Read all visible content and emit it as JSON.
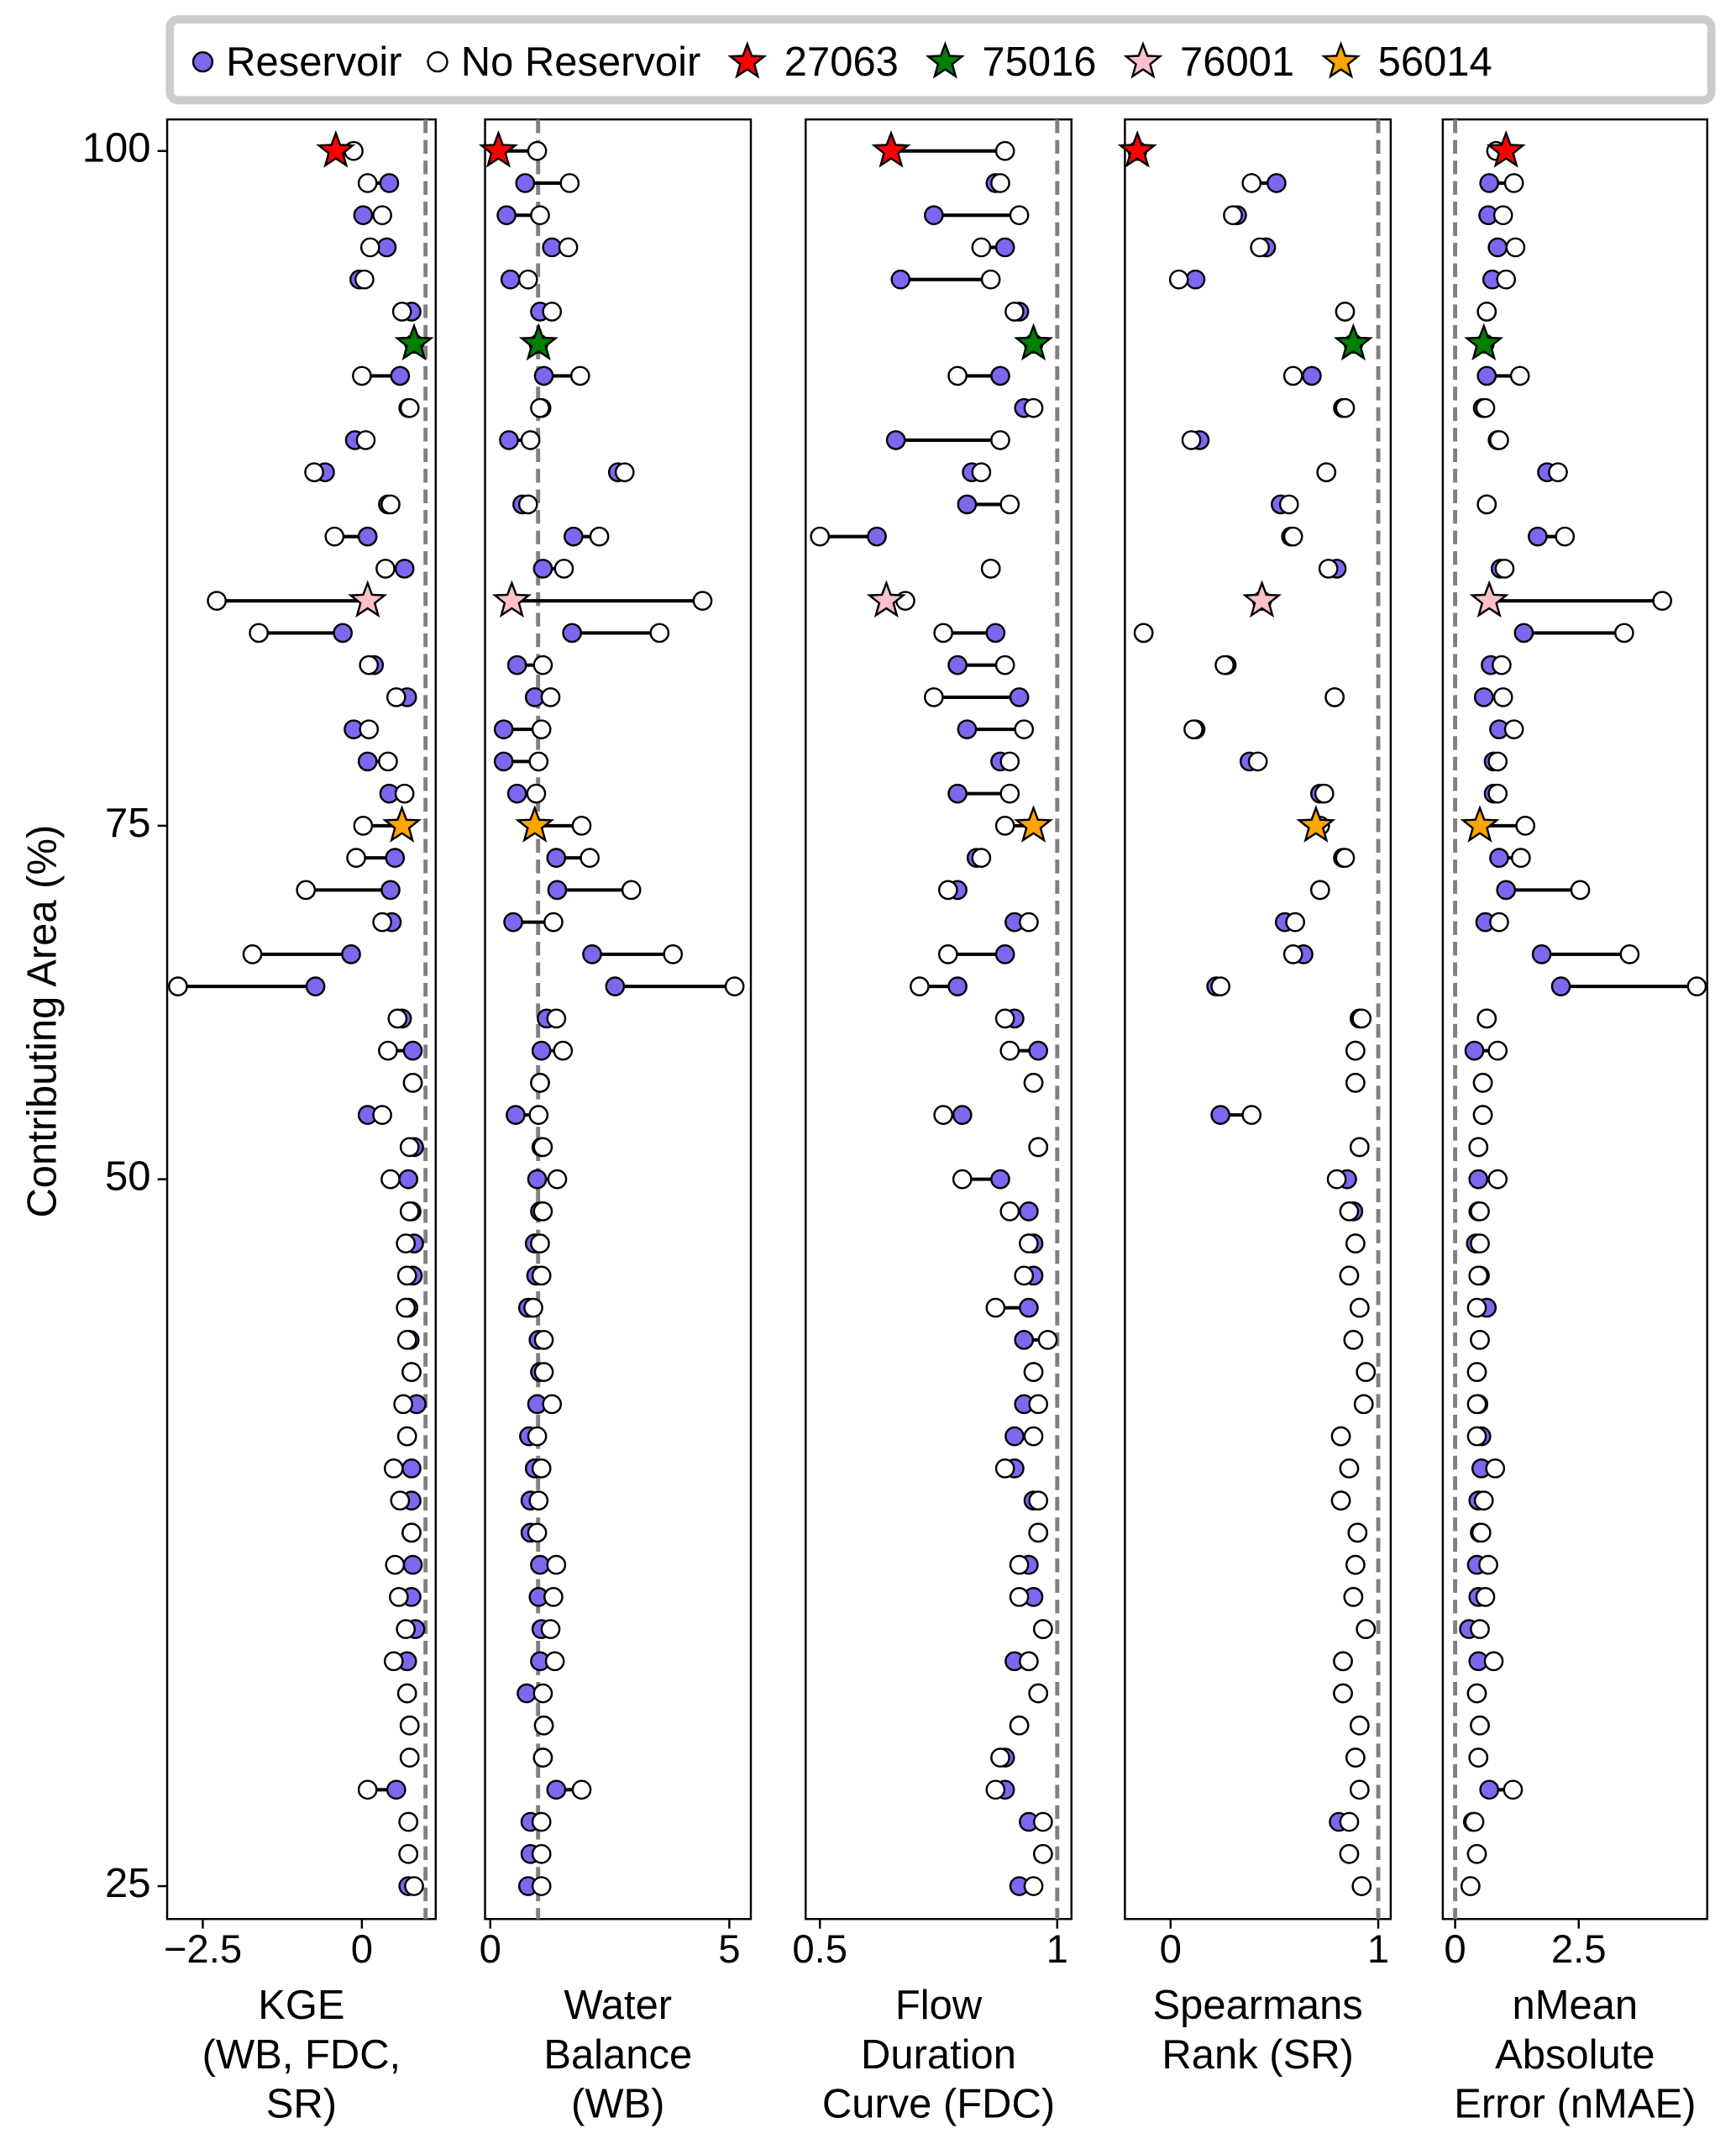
{
  "chart_data": {
    "type": "dumbbell",
    "ylabel": "Contributing Area (%)",
    "categories": [
      "100",
      null,
      null,
      null,
      null,
      null,
      null,
      null,
      null,
      null,
      null,
      null,
      null,
      null,
      null,
      null,
      null,
      null,
      null,
      null,
      null,
      "75",
      null,
      null,
      null,
      null,
      null,
      null,
      null,
      null,
      null,
      null,
      "50",
      null,
      null,
      null,
      null,
      null,
      null,
      null,
      null,
      null,
      null,
      null,
      null,
      null,
      null,
      null,
      null,
      null,
      null,
      null,
      null,
      null,
      "25"
    ],
    "series": [
      {
        "name": "Reservoir",
        "color": "#7b68ee"
      },
      {
        "name": "No Reservoir",
        "color": "#ffffff"
      }
    ],
    "highlights": [
      {
        "name": "27063",
        "color": "#ff0000",
        "row": 0
      },
      {
        "name": "75016",
        "color": "#008000",
        "row": 6
      },
      {
        "name": "76001",
        "color": "#ffc0cb",
        "row": 14
      },
      {
        "name": "56014",
        "color": "#ffa500",
        "row": 21
      }
    ],
    "panels": [
      {
        "xlabel": [
          "KGE",
          "(WB, FDC,",
          "SR)"
        ],
        "xlim": [
          -3.06,
          1.16
        ],
        "xticks": [
          {
            "value": -2.5,
            "label": "−2.5"
          },
          0
        ],
        "reference": 1,
        "series": [
          {
            "values": [
              -0.41,
              0.43,
              0.02,
              0.39,
              -0.04,
              0.78,
              0.82,
              0.6,
              0.73,
              -0.11,
              -0.58,
              0.41,
              0.09,
              0.67,
              0.09,
              -0.3,
              0.19,
              0.71,
              -0.13,
              0.09,
              0.43,
              0.63,
              0.52,
              0.45,
              0.47,
              -0.17,
              -0.73,
              0.63,
              0.8,
              0.8,
              0.09,
              0.82,
              0.73,
              0.78,
              0.82,
              0.8,
              0.73,
              0.75,
              0.78,
              0.86,
              0.71,
              0.78,
              0.78,
              0.78,
              0.8,
              0.78,
              0.84,
              0.71,
              0.71,
              0.75,
              0.75,
              0.54,
              0.73,
              0.73,
              0.73
            ]
          },
          {
            "values": [
              -0.13,
              0.09,
              0.32,
              0.13,
              0.04,
              0.63,
              0.82,
              0.0,
              0.75,
              0.06,
              -0.75,
              0.45,
              -0.43,
              0.37,
              -2.28,
              -1.62,
              0.11,
              0.54,
              0.11,
              0.41,
              0.67,
              0.02,
              -0.09,
              -0.88,
              0.32,
              -1.72,
              -2.89,
              0.56,
              0.41,
              0.8,
              0.32,
              0.75,
              0.45,
              0.75,
              0.69,
              0.71,
              0.69,
              0.71,
              0.78,
              0.65,
              0.71,
              0.5,
              0.6,
              0.78,
              0.52,
              0.58,
              0.69,
              0.5,
              0.71,
              0.75,
              0.75,
              0.09,
              0.73,
              0.73,
              0.82
            ]
          }
        ]
      },
      {
        "xlabel": [
          "Water",
          "Balance",
          "(WB)"
        ],
        "xlim": [
          -0.11,
          5.45
        ],
        "xticks": [
          0,
          5
        ],
        "reference": 1,
        "series": [
          {
            "values": [
              0.17,
              0.73,
              0.34,
              1.29,
              0.42,
              1.04,
              1.01,
              1.12,
              1.07,
              0.39,
              2.67,
              0.67,
              1.74,
              1.1,
              0.45,
              1.71,
              0.56,
              0.93,
              0.28,
              0.28,
              0.56,
              0.93,
              1.38,
              1.4,
              0.48,
              2.13,
              2.61,
              1.18,
              1.07,
              1.04,
              0.53,
              1.07,
              0.98,
              1.04,
              0.93,
              0.96,
              0.79,
              1.01,
              1.04,
              0.98,
              0.81,
              0.93,
              0.84,
              0.84,
              1.04,
              1.01,
              1.07,
              1.04,
              0.76,
              1.12,
              1.1,
              1.38,
              0.84,
              0.84,
              0.79
            ]
          },
          {
            "values": [
              0.98,
              1.66,
              1.04,
              1.63,
              0.79,
              1.29,
              1.01,
              1.88,
              1.04,
              0.84,
              2.81,
              0.79,
              2.28,
              1.54,
              4.44,
              3.54,
              1.1,
              1.26,
              1.07,
              1.01,
              0.96,
              1.91,
              2.08,
              2.95,
              1.32,
              3.82,
              5.11,
              1.38,
              1.52,
              1.04,
              1.01,
              1.1,
              1.4,
              1.1,
              1.04,
              1.07,
              0.9,
              1.12,
              1.12,
              1.29,
              0.98,
              1.07,
              1.01,
              0.98,
              1.38,
              1.32,
              1.26,
              1.35,
              1.1,
              1.12,
              1.1,
              1.91,
              1.07,
              1.07,
              1.07
            ]
          }
        ]
      },
      {
        "xlabel": [
          "Flow",
          "Duration",
          "Curve (FDC)"
        ],
        "xlim": [
          0.47,
          1.03
        ],
        "xticks": [
          0.5,
          1
        ],
        "reference": 1,
        "series": [
          {
            "values": [
              0.65,
              0.87,
              0.74,
              0.89,
              0.67,
              0.92,
              0.95,
              0.88,
              0.93,
              0.66,
              0.82,
              0.81,
              0.62,
              0.86,
              0.64,
              0.87,
              0.79,
              0.92,
              0.81,
              0.88,
              0.79,
              0.95,
              0.83,
              0.79,
              0.91,
              0.89,
              0.79,
              0.91,
              0.96,
              0.95,
              0.8,
              0.96,
              0.88,
              0.94,
              0.95,
              0.95,
              0.94,
              0.93,
              0.95,
              0.93,
              0.91,
              0.91,
              0.95,
              0.96,
              0.94,
              0.95,
              0.97,
              0.91,
              0.96,
              0.92,
              0.89,
              0.89,
              0.94,
              0.97,
              0.92
            ]
          },
          {
            "values": [
              0.89,
              0.88,
              0.92,
              0.84,
              0.86,
              0.91,
              0.95,
              0.79,
              0.95,
              0.88,
              0.84,
              0.9,
              0.5,
              0.86,
              0.68,
              0.76,
              0.89,
              0.74,
              0.93,
              0.9,
              0.9,
              0.89,
              0.84,
              0.77,
              0.94,
              0.77,
              0.71,
              0.89,
              0.9,
              0.95,
              0.76,
              0.96,
              0.8,
              0.9,
              0.94,
              0.93,
              0.87,
              0.98,
              0.95,
              0.96,
              0.95,
              0.89,
              0.96,
              0.96,
              0.92,
              0.92,
              0.97,
              0.94,
              0.96,
              0.92,
              0.88,
              0.87,
              0.97,
              0.97,
              0.95
            ]
          }
        ]
      },
      {
        "xlabel": [
          "Spearmans",
          "Rank (SR)"
        ],
        "xlim": [
          -0.22,
          1.06
        ],
        "xticks": [
          0,
          1
        ],
        "reference": 1,
        "series": [
          {
            "values": [
              -0.16,
              0.51,
              0.32,
              0.46,
              0.12,
              0.84,
              0.88,
              0.68,
              0.83,
              0.14,
              0.75,
              0.53,
              0.58,
              0.8,
              0.44,
              -0.13,
              0.27,
              0.79,
              0.12,
              0.38,
              0.72,
              0.7,
              0.83,
              0.72,
              0.55,
              0.64,
              0.22,
              0.91,
              0.89,
              0.89,
              0.24,
              0.91,
              0.85,
              0.88,
              0.89,
              0.86,
              0.91,
              0.88,
              0.94,
              0.93,
              0.82,
              0.86,
              0.82,
              0.9,
              0.89,
              0.88,
              0.94,
              0.83,
              0.83,
              0.91,
              0.89,
              0.91,
              0.81,
              0.86,
              0.92
            ]
          },
          {
            "values": [
              -0.16,
              0.39,
              0.3,
              0.43,
              0.04,
              0.84,
              0.88,
              0.59,
              0.84,
              0.1,
              0.75,
              0.57,
              0.59,
              0.76,
              0.44,
              -0.13,
              0.26,
              0.79,
              0.11,
              0.42,
              0.74,
              0.72,
              0.84,
              0.72,
              0.6,
              0.59,
              0.24,
              0.92,
              0.89,
              0.89,
              0.39,
              0.91,
              0.8,
              0.86,
              0.89,
              0.86,
              0.91,
              0.88,
              0.94,
              0.93,
              0.82,
              0.86,
              0.82,
              0.9,
              0.89,
              0.88,
              0.94,
              0.83,
              0.83,
              0.91,
              0.89,
              0.91,
              0.86,
              0.86,
              0.92
            ]
          }
        ]
      },
      {
        "xlabel": [
          "nMean",
          "Absolute",
          "Error (nMAE)"
        ],
        "xlim": [
          -0.25,
          5.1
        ],
        "xticks": [
          0,
          2.5
        ],
        "reference": 0,
        "series": [
          {
            "values": [
              1.03,
              0.69,
              0.67,
              0.86,
              0.75,
              0.64,
              0.58,
              0.64,
              0.56,
              0.86,
              1.86,
              0.64,
              1.67,
              0.92,
              0.69,
              1.39,
              0.72,
              0.58,
              0.89,
              0.78,
              0.78,
              0.5,
              0.89,
              1.03,
              0.61,
              1.75,
              2.14,
              0.64,
              0.39,
              0.56,
              0.56,
              0.47,
              0.47,
              0.47,
              0.42,
              0.5,
              0.64,
              0.5,
              0.44,
              0.47,
              0.53,
              0.53,
              0.47,
              0.5,
              0.44,
              0.47,
              0.28,
              0.47,
              0.44,
              0.5,
              0.47,
              0.69,
              0.36,
              0.44,
              0.31
            ]
          },
          {
            "values": [
              0.83,
              1.19,
              0.97,
              1.22,
              1.03,
              0.64,
              0.6,
              1.31,
              0.61,
              0.89,
              2.08,
              0.64,
              2.22,
              1.0,
              4.19,
              3.42,
              0.94,
              0.97,
              1.19,
              0.86,
              0.86,
              1.42,
              1.33,
              2.53,
              0.89,
              3.53,
              4.89,
              0.64,
              0.86,
              0.56,
              0.56,
              0.47,
              0.86,
              0.5,
              0.5,
              0.47,
              0.44,
              0.5,
              0.44,
              0.44,
              0.44,
              0.81,
              0.58,
              0.53,
              0.67,
              0.61,
              0.5,
              0.78,
              0.44,
              0.5,
              0.47,
              1.17,
              0.39,
              0.44,
              0.31
            ]
          }
        ]
      }
    ]
  }
}
